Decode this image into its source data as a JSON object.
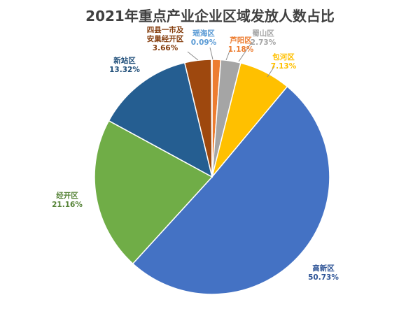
{
  "chart_data": {
    "type": "pie",
    "title": "2021年重点产业企业区域发放人数占比",
    "start": "12 o'clock",
    "direction": "clockwise",
    "slices": [
      {
        "name": "芦阳区",
        "label": "1.18%",
        "value": 1.18,
        "color": "#ED7D31"
      },
      {
        "name": "蜀山区",
        "label": "2.73%",
        "value": 2.73,
        "color": "#A5A5A5"
      },
      {
        "name": "包河区",
        "label": "7.13%",
        "value": 7.13,
        "color": "#FFC000"
      },
      {
        "name": "高新区",
        "label": "50.73%",
        "value": 50.73,
        "color": "#4472C4"
      },
      {
        "name": "经开区",
        "label": "21.16%",
        "value": 21.16,
        "color": "#70AD47"
      },
      {
        "name": "新站区",
        "label": "13.32%",
        "value": 13.32,
        "color": "#255E91"
      },
      {
        "name": "四县一市及安巢经开区",
        "name_lines": [
          "四县一市及",
          "安巢经开区"
        ],
        "label": "3.66%",
        "value": 3.66,
        "color": "#9E480E"
      },
      {
        "name": "瑶海区",
        "label": "0.09%",
        "value": 0.09,
        "color": "#5B9BD5"
      }
    ],
    "label_colors": {
      "芦阳区": "#ED7D31",
      "蜀山区": "#A5A5A5",
      "包河区": "#FFC000",
      "高新区": "#2F5597",
      "经开区": "#548235",
      "新站区": "#1F4E79",
      "四县一市及安巢经开区": "#843C0C",
      "瑶海区": "#5B9BD5"
    }
  }
}
